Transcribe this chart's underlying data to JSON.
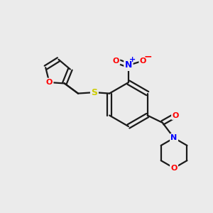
{
  "background_color": "#ebebeb",
  "bond_color": "#1a1a1a",
  "atom_colors": {
    "O": "#ff0000",
    "N": "#0000ff",
    "S": "#cccc00",
    "C": "#1a1a1a"
  }
}
